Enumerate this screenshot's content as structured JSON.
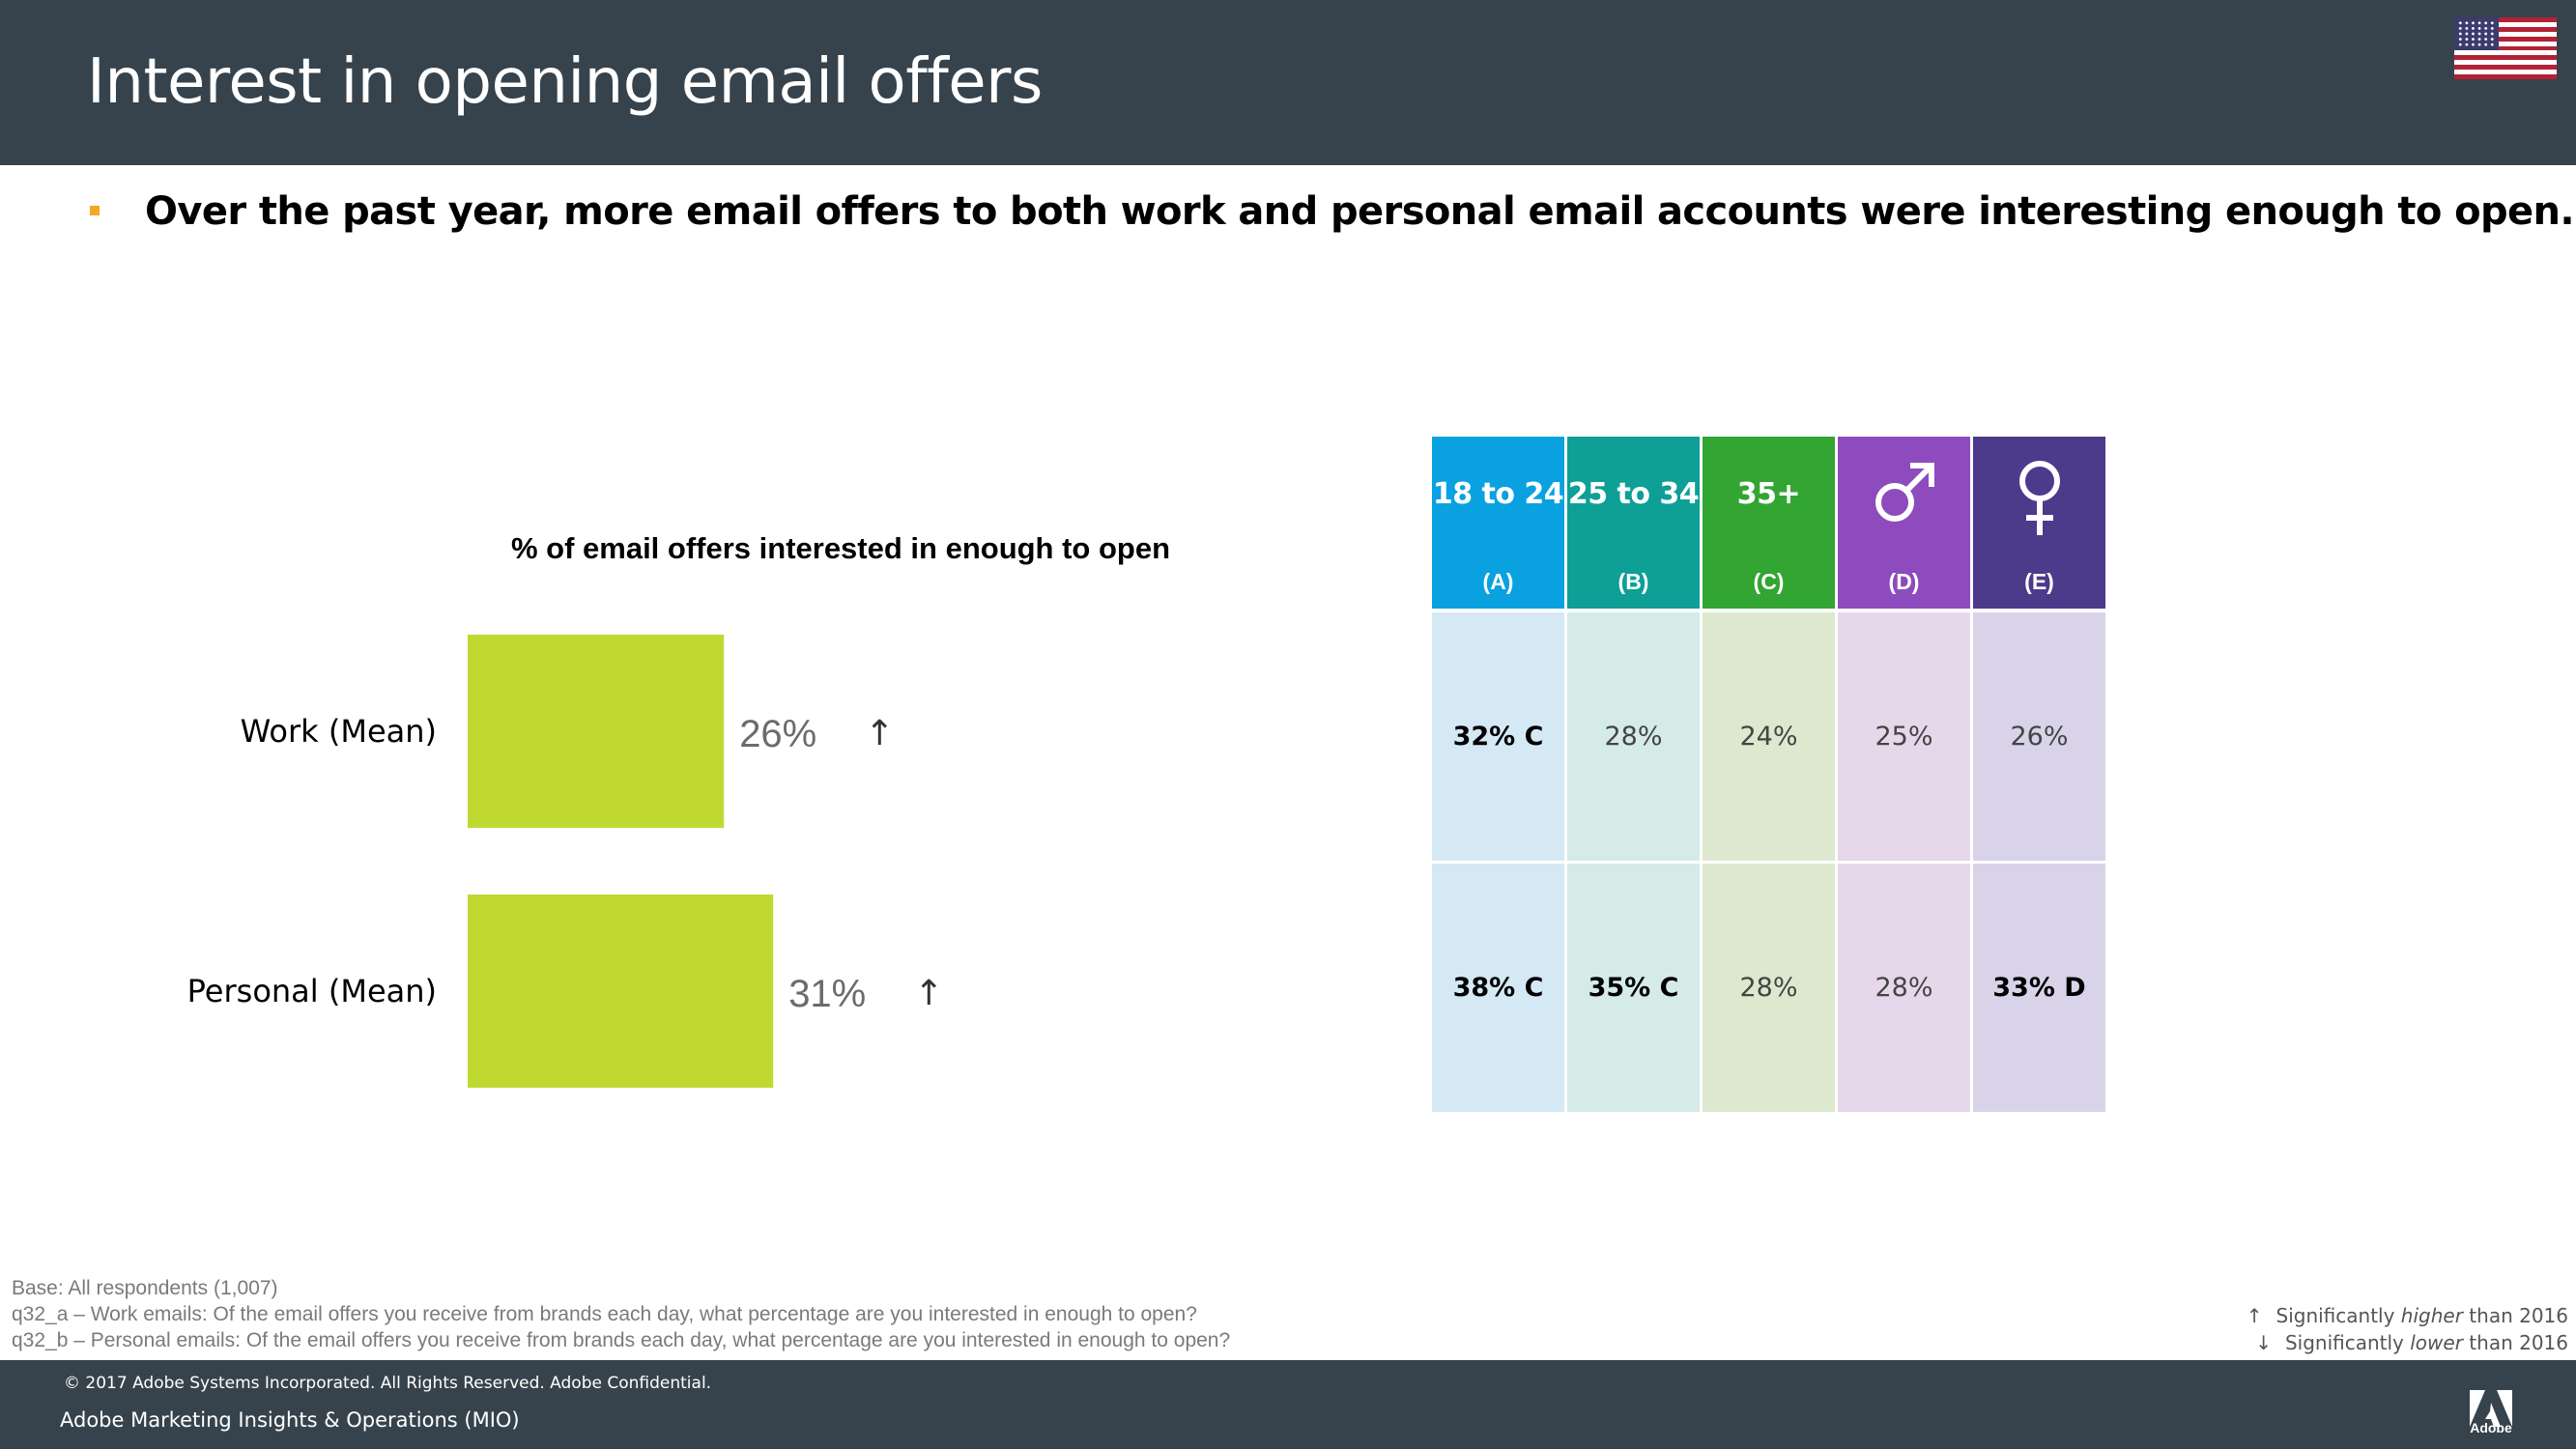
{
  "header": {
    "title": "Interest in opening email offers",
    "flag_icon": "us-flag-icon"
  },
  "subtitle": "Over the past year, more email offers to both work and personal email accounts were interesting enough to open.",
  "chart_data": {
    "type": "bar",
    "orientation": "horizontal",
    "title": "% of email offers interested in enough to open",
    "categories": [
      "Work (Mean)",
      "Personal (Mean)"
    ],
    "values": [
      26,
      31
    ],
    "value_labels": [
      "26%",
      "31%"
    ],
    "significance": [
      "↑",
      "↑"
    ],
    "xlim": [
      0,
      100
    ],
    "color": "#c0d930",
    "grid": false
  },
  "table": {
    "columns": [
      {
        "label": "18 to 24",
        "letter": "(A)",
        "color": "#0aa1e0",
        "cell_color": "#d5e9f5",
        "icon": ""
      },
      {
        "label": "25 to 34",
        "letter": "(B)",
        "color": "#0e9f97",
        "cell_color": "#d5ebe8",
        "icon": ""
      },
      {
        "label": "35+",
        "letter": "(C)",
        "color": "#33a532",
        "cell_color": "#dce9cf",
        "icon": ""
      },
      {
        "label": "",
        "letter": "(D)",
        "color": "#8d4bbd",
        "cell_color": "#e6d8ea",
        "icon": "male-symbol-icon"
      },
      {
        "label": "",
        "letter": "(E)",
        "color": "#4c3a8a",
        "cell_color": "#d9d3e9",
        "icon": "female-symbol-icon"
      }
    ],
    "rows": [
      [
        {
          "text": "32% C",
          "bold": true
        },
        {
          "text": "28%",
          "bold": false
        },
        {
          "text": "24%",
          "bold": false
        },
        {
          "text": "25%",
          "bold": false
        },
        {
          "text": "26%",
          "bold": false
        }
      ],
      [
        {
          "text": "38% C",
          "bold": true
        },
        {
          "text": "35% C",
          "bold": true
        },
        {
          "text": "28%",
          "bold": false
        },
        {
          "text": "28%",
          "bold": false
        },
        {
          "text": "33% D",
          "bold": true
        }
      ]
    ]
  },
  "footnotes": {
    "base": "Base: All respondents (1,007)",
    "q32a": "q32_a – Work emails: Of the email offers you receive from brands each day, what percentage are you interested in enough to open?",
    "q32b": "q32_b – Personal emails: Of the email offers you receive from brands each day, what percentage are you interested in enough to open?"
  },
  "legend": {
    "up_glyph": "↑",
    "up_pre": "Significantly ",
    "up_em": "higher",
    "up_post": " than 2016",
    "down_glyph": "↓",
    "down_pre": "Significantly ",
    "down_em": "lower",
    "down_post": " than 2016"
  },
  "footer": {
    "copyright": "© 2017 Adobe Systems Incorporated.  All Rights Reserved.  Adobe Confidential.",
    "team": "Adobe Marketing Insights & Operations (MIO)",
    "logo_text": "Adobe",
    "logo_icon": "adobe-logo-icon"
  }
}
